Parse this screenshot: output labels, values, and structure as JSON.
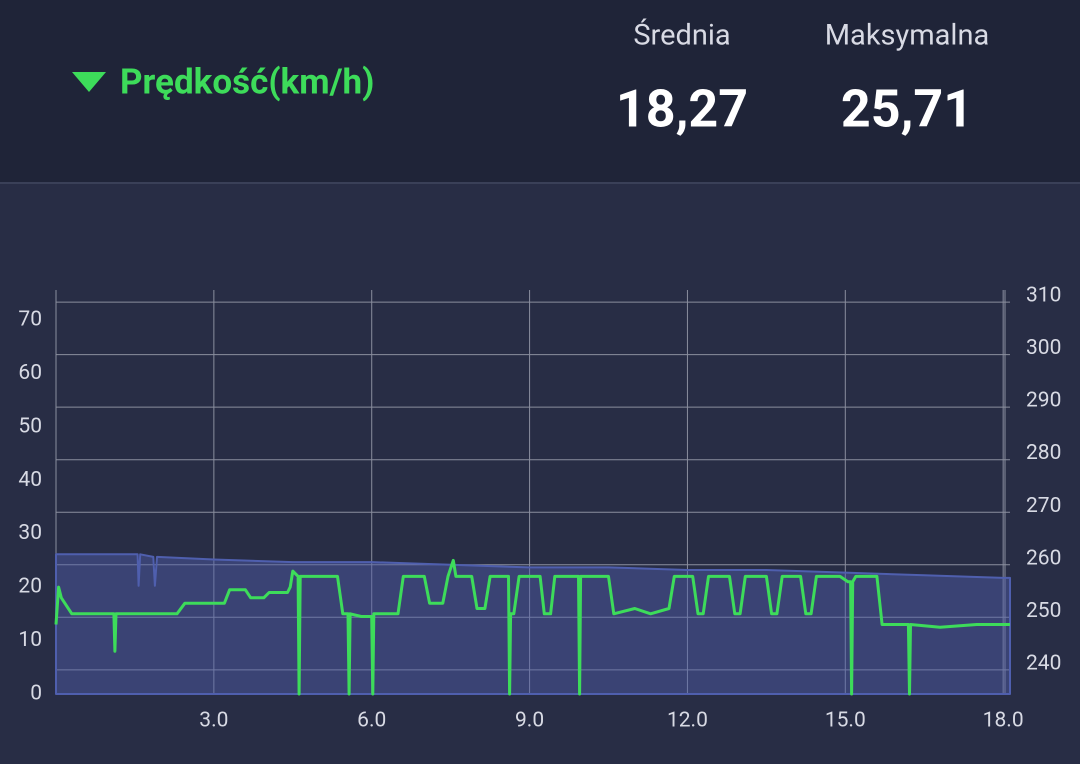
{
  "header": {
    "title": "Prędkość(km/h)",
    "stats": [
      {
        "label": "Średnia",
        "value": "18,27"
      },
      {
        "label": "Maksymalna",
        "value": "25,71"
      }
    ]
  },
  "chart_data": {
    "type": "line",
    "xlim": [
      0,
      18.13
    ],
    "xticks": [
      {
        "value": 3,
        "label": "3.0"
      },
      {
        "value": 6,
        "label": "6.0"
      },
      {
        "value": 9,
        "label": "9.0"
      },
      {
        "value": 12,
        "label": "12.0"
      },
      {
        "value": 15,
        "label": "15.0"
      },
      {
        "value": 18,
        "label": "18.0"
      }
    ],
    "ylim": [
      0,
      75.6
    ],
    "yticks": [
      0,
      10,
      20,
      30,
      40,
      50,
      60,
      70
    ],
    "y2lim": [
      235.4,
      312.3
    ],
    "y2ticks": [
      240,
      250,
      260,
      270,
      280,
      290,
      300,
      310
    ],
    "grid": true,
    "series": [
      {
        "axis": "y2",
        "area": true,
        "color": "#4f5fae",
        "x": [
          0,
          1.0,
          1.55,
          1.57,
          1.6,
          1.85,
          1.88,
          1.92,
          3,
          4.5,
          6,
          7.5,
          9,
          10.5,
          12,
          13.5,
          15,
          16.5,
          18,
          18.13
        ],
        "values": [
          262,
          262,
          262,
          256,
          262,
          261.5,
          256,
          261.5,
          261,
          260.5,
          260.5,
          260,
          259.5,
          259.5,
          259,
          259,
          258.5,
          258,
          257.5,
          257.5
        ]
      },
      {
        "color": "#3ddc5a",
        "x": [
          0,
          0.05,
          0.1,
          0.3,
          0.45,
          1.1,
          1.12,
          1.14,
          1.6,
          2.3,
          2.45,
          3.0,
          3.2,
          3.3,
          3.6,
          3.7,
          3.95,
          4.05,
          4.4,
          4.45,
          4.5,
          4.6,
          4.62,
          4.64,
          4.7,
          5.35,
          5.45,
          5.55,
          5.57,
          5.59,
          5.8,
          6.0,
          6.02,
          6.04,
          6.5,
          6.6,
          7.0,
          7.1,
          7.35,
          7.45,
          7.55,
          7.6,
          7.65,
          7.9,
          8.0,
          8.15,
          8.25,
          8.55,
          8.6,
          8.62,
          8.64,
          8.7,
          8.8,
          8.85,
          9.2,
          9.28,
          9.4,
          9.48,
          9.85,
          9.93,
          9.95,
          9.97,
          10.05,
          10.5,
          10.6,
          11.0,
          11.3,
          11.65,
          11.75,
          12.1,
          12.2,
          12.3,
          12.4,
          12.8,
          12.9,
          13.0,
          13.1,
          13.5,
          13.6,
          13.7,
          13.8,
          14.15,
          14.25,
          14.35,
          14.45,
          14.9,
          15.05,
          15.1,
          15.12,
          15.14,
          15.2,
          15.6,
          15.7,
          15.8,
          16.2,
          16.22,
          16.24,
          16.8,
          17.5,
          18.13
        ],
        "values": [
          13,
          20,
          18,
          15,
          15,
          15,
          8,
          15,
          15,
          15,
          17,
          17,
          17,
          19.5,
          19.5,
          18,
          18,
          19,
          19,
          20,
          23,
          22,
          0,
          22,
          22,
          22,
          15,
          15,
          0,
          15,
          14.5,
          14.5,
          0,
          15,
          15,
          22,
          22,
          17,
          17,
          22,
          25,
          22,
          22,
          22,
          16,
          16,
          22,
          22,
          22,
          0,
          15,
          15,
          22,
          22,
          22,
          15,
          15,
          22,
          22,
          22,
          0,
          22,
          22,
          22,
          15,
          16,
          15,
          16,
          22,
          22,
          15,
          15,
          22,
          22,
          15,
          15,
          22,
          22,
          15,
          15,
          22,
          22,
          15,
          15,
          22,
          22,
          21,
          21,
          0,
          21,
          22,
          22,
          13,
          13,
          13,
          0,
          13,
          12.5,
          13,
          13
        ]
      }
    ]
  }
}
